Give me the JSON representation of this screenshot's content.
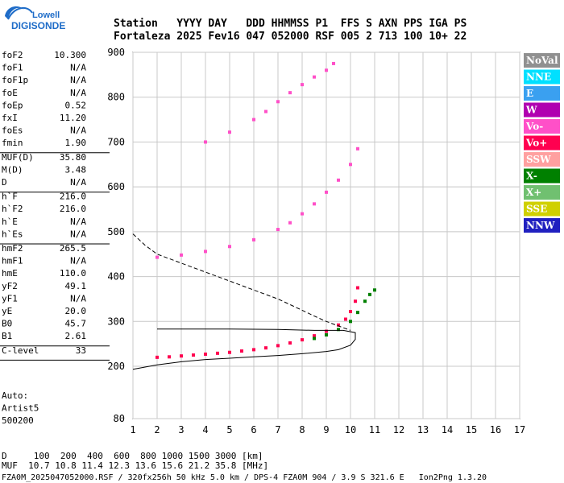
{
  "logo": {
    "line1": "Lowell",
    "line2": "DIGISONDE"
  },
  "header": {
    "row1": "Station   YYYY DAY   DDD HHMMSS P1  FFS S AXN PPS IGA PS",
    "row2": "Fortaleza 2025 Fev16 047 052000 RSF 005 2 713 100 10+ 22"
  },
  "params": [
    {
      "name": "foF2",
      "value": "10.300"
    },
    {
      "name": "foF1",
      "value": "N/A"
    },
    {
      "name": "foF1p",
      "value": "N/A"
    },
    {
      "name": "foE",
      "value": "N/A"
    },
    {
      "name": "foEp",
      "value": "0.52"
    },
    {
      "name": "fxI",
      "value": "11.20"
    },
    {
      "name": "foEs",
      "value": "N/A"
    },
    {
      "name": "fmin",
      "value": "1.90"
    },
    {
      "sep": true
    },
    {
      "name": "MUF(D)",
      "value": "35.80"
    },
    {
      "name": "M(D)",
      "value": "3.48"
    },
    {
      "name": "D",
      "value": "N/A"
    },
    {
      "sep": true
    },
    {
      "name": "h`F",
      "value": "216.0"
    },
    {
      "name": "h`F2",
      "value": "216.0"
    },
    {
      "name": "h`E",
      "value": "N/A"
    },
    {
      "name": "h`Es",
      "value": "N/A"
    },
    {
      "sep": true
    },
    {
      "name": "hmF2",
      "value": "265.5"
    },
    {
      "name": "hmF1",
      "value": "N/A"
    },
    {
      "name": "hmE",
      "value": "110.0"
    },
    {
      "name": "yF2",
      "value": "49.1"
    },
    {
      "name": "yF1",
      "value": "N/A"
    },
    {
      "name": "yE",
      "value": "20.0"
    },
    {
      "name": "B0",
      "value": "45.7"
    },
    {
      "name": "B1",
      "value": "2.61"
    },
    {
      "sep": true
    },
    {
      "name": "C-level",
      "value": "33"
    },
    {
      "sep": true
    }
  ],
  "auto": [
    "Auto:",
    "Artist5",
    "500200"
  ],
  "legend": [
    {
      "label": "NoVal",
      "color": "#909090"
    },
    {
      "label": "NNE",
      "color": "#00e0ff"
    },
    {
      "label": "E",
      "color": "#3aa0f0"
    },
    {
      "label": "W",
      "color": "#b000b0"
    },
    {
      "label": "Vo-",
      "color": "#ff50c8"
    },
    {
      "label": "Vo+",
      "color": "#ff0050"
    },
    {
      "label": "SSW",
      "color": "#ffa0a0"
    },
    {
      "label": "X-",
      "color": "#008000"
    },
    {
      "label": "X+",
      "color": "#70c070"
    },
    {
      "label": "SSE",
      "color": "#d0d000"
    },
    {
      "label": "NNW",
      "color": "#2020c0"
    }
  ],
  "footer": {
    "d_line": "D     100  200  400  600  800 1000 1500 3000 [km]",
    "muf_line": "MUF  10.7 10.8 11.4 12.3 13.6 15.6 21.2 35.8 [MHz]",
    "file_line": "FZA0M_2025047052000.RSF / 320fx256h 50 kHz 5.0 km / DPS-4 FZA0M 904 / 3.9 S 321.6 E   Ion2Png 1.3.20"
  },
  "chart_data": {
    "type": "scatter",
    "xlim": [
      1,
      17
    ],
    "ylim": [
      80,
      900
    ],
    "x_ticks": [
      1,
      2,
      3,
      4,
      5,
      6,
      7,
      8,
      9,
      10,
      11,
      12,
      13,
      14,
      15,
      16,
      17
    ],
    "y_ticks": [
      {
        "v": 80,
        "label": "80"
      },
      {
        "v": 200,
        "label": "200"
      },
      {
        "v": 300,
        "label": "300"
      },
      {
        "v": 400,
        "label": "400"
      },
      {
        "v": 500,
        "label": "500"
      },
      {
        "v": 600,
        "label": "600"
      },
      {
        "v": 700,
        "label": "700"
      },
      {
        "v": 800,
        "label": "800"
      },
      {
        "v": 900,
        "label": "900"
      }
    ],
    "grid": true,
    "traces": [
      {
        "name": "O-trace 1st hop",
        "x": [
          2.0,
          2.5,
          3.0,
          3.5,
          4.0,
          4.5,
          5.0,
          5.5,
          6.0,
          6.5,
          7.0,
          7.5,
          8.0,
          8.5,
          9.0,
          9.5,
          9.8,
          10.0,
          10.2,
          10.3
        ],
        "y": [
          220,
          221,
          223,
          225,
          227,
          229,
          231,
          234,
          237,
          241,
          246,
          252,
          259,
          268,
          278,
          292,
          305,
          322,
          345,
          375
        ],
        "color": "#ff0050"
      },
      {
        "name": "X-trace 1st hop",
        "x": [
          8.5,
          9.0,
          9.5,
          10.0,
          10.3,
          10.6,
          10.8,
          11.0
        ],
        "y": [
          262,
          270,
          282,
          300,
          320,
          345,
          360,
          370
        ],
        "color": "#008000"
      },
      {
        "name": "2nd hop",
        "x": [
          2.0,
          3.0,
          4.0,
          5.0,
          6.0,
          7.0,
          7.5,
          8.0,
          8.5,
          9.0,
          9.5,
          10.0,
          10.3
        ],
        "y": [
          443,
          448,
          456,
          467,
          482,
          505,
          520,
          540,
          562,
          588,
          615,
          650,
          685
        ],
        "color": "#ff50c8"
      },
      {
        "name": "3rd hop",
        "x": [
          4.0,
          5.0,
          6.0,
          6.5,
          7.0,
          7.5,
          8.0,
          8.5,
          9.0,
          9.3
        ],
        "y": [
          700,
          722,
          750,
          768,
          790,
          810,
          828,
          845,
          860,
          875
        ],
        "color": "#ff50c8"
      }
    ],
    "profile_dashed": {
      "x": [
        1.0,
        1.5,
        2.0,
        3.0,
        4.0,
        5.0,
        6.0,
        7.0,
        8.0,
        8.5,
        9.0,
        9.5,
        10.0
      ],
      "y": [
        495,
        470,
        450,
        430,
        410,
        390,
        370,
        350,
        325,
        312,
        300,
        290,
        280
      ]
    },
    "profile_solid": {
      "x": [
        1.0,
        2.0,
        3.0,
        4.0,
        5.0,
        6.0,
        7.0,
        8.0,
        9.0,
        9.5,
        10.0,
        10.2,
        10.2,
        9.7,
        8.5,
        7.0,
        5.0,
        3.5,
        2.0
      ],
      "y": [
        193,
        203,
        210,
        215,
        218,
        221,
        224,
        228,
        233,
        237,
        247,
        260,
        275,
        280,
        280,
        282,
        283,
        283,
        283
      ]
    }
  }
}
